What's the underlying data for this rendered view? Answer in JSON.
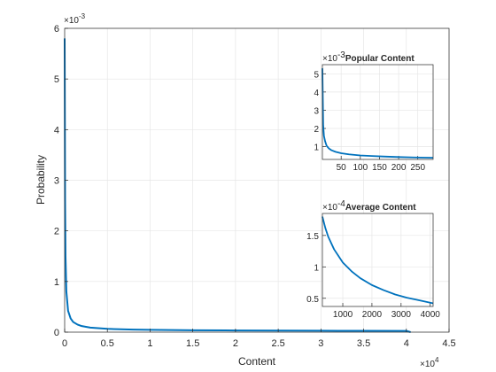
{
  "chart_data": [
    {
      "type": "line",
      "title": "",
      "xlabel": "Content",
      "ylabel": "Probability",
      "x_exponent_label": "×10",
      "x_exponent_power": "4",
      "y_exponent_label": "×10",
      "y_exponent_power": "-3",
      "xlim": [
        0,
        4.5
      ],
      "ylim": [
        0,
        6
      ],
      "x_scale_note": "×10^4",
      "y_scale_note": "×10^-3",
      "xticks": [
        "0",
        "0.5",
        "1",
        "1.5",
        "2",
        "2.5",
        "3",
        "3.5",
        "4",
        "4.5"
      ],
      "yticks": [
        "0",
        "1",
        "2",
        "3",
        "4",
        "5",
        "6"
      ],
      "grid": true,
      "series": [
        {
          "color": "#0072BD",
          "x": [
            0,
            0.002,
            0.005,
            0.01,
            0.02,
            0.04,
            0.07,
            0.1,
            0.15,
            0.2,
            0.3,
            0.5,
            0.8,
            1.0,
            1.5,
            2.0,
            2.5,
            3.0,
            3.5,
            4.0,
            4.05
          ],
          "y": [
            5.8,
            4.6,
            2.6,
            1.5,
            0.8,
            0.42,
            0.27,
            0.2,
            0.15,
            0.12,
            0.09,
            0.065,
            0.05,
            0.045,
            0.038,
            0.033,
            0.03,
            0.028,
            0.026,
            0.025,
            0.0
          ]
        }
      ]
    },
    {
      "type": "line",
      "title": "Popular Content",
      "y_exponent_label": "×10",
      "y_exponent_power": "-3",
      "xlim": [
        1,
        290
      ],
      "ylim": [
        0.3,
        5.5
      ],
      "xticks": [
        "50",
        "100",
        "150",
        "200",
        "250"
      ],
      "xtick_values": [
        50,
        100,
        150,
        200,
        250
      ],
      "yticks": [
        "1",
        "2",
        "3",
        "4",
        "5"
      ],
      "ytick_values": [
        1,
        2,
        3,
        4,
        5
      ],
      "grid": true,
      "series": [
        {
          "color": "#0072BD",
          "x": [
            1,
            3,
            5,
            8,
            12,
            18,
            25,
            35,
            50,
            70,
            100,
            130,
            160,
            200,
            240,
            290
          ],
          "y": [
            5.3,
            2.2,
            1.6,
            1.3,
            1.05,
            0.9,
            0.8,
            0.72,
            0.64,
            0.58,
            0.52,
            0.49,
            0.46,
            0.43,
            0.41,
            0.39
          ]
        }
      ]
    },
    {
      "type": "line",
      "title": "Average Content",
      "y_exponent_label": "×10",
      "y_exponent_power": "-4",
      "xlim": [
        300,
        4100
      ],
      "ylim": [
        0.37,
        1.85
      ],
      "xticks": [
        "1000",
        "2000",
        "3000",
        "4000"
      ],
      "xtick_values": [
        1000,
        2000,
        3000,
        4000
      ],
      "yticks": [
        "0.5",
        "1",
        "1.5"
      ],
      "ytick_values": [
        0.5,
        1,
        1.5
      ],
      "grid": true,
      "series": [
        {
          "color": "#0072BD",
          "x": [
            300,
            400,
            500,
            700,
            1000,
            1300,
            1600,
            2000,
            2400,
            2800,
            3200,
            3600,
            4000,
            4100
          ],
          "y": [
            1.8,
            1.62,
            1.48,
            1.28,
            1.07,
            0.93,
            0.82,
            0.71,
            0.63,
            0.56,
            0.51,
            0.47,
            0.43,
            0.42
          ]
        }
      ]
    }
  ]
}
